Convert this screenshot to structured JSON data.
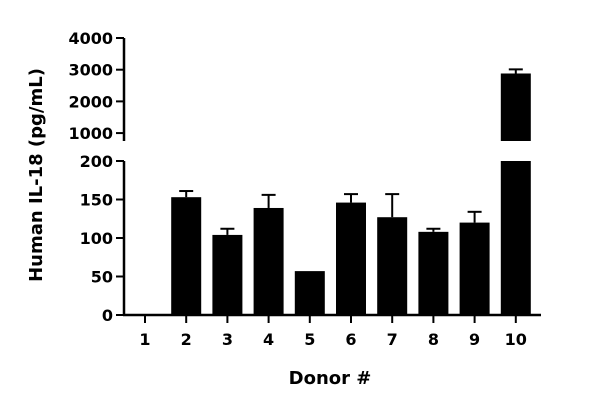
{
  "chart_data": {
    "type": "bar",
    "xlabel": "Donor #",
    "ylabel": "Human IL-18 (pg/mL)",
    "categories": [
      "1",
      "2",
      "3",
      "4",
      "5",
      "6",
      "7",
      "8",
      "9",
      "10"
    ],
    "values": [
      0,
      153,
      104,
      139,
      57,
      146,
      127,
      108,
      120,
      2880
    ],
    "error_upper": [
      0,
      8,
      8,
      17,
      0,
      11,
      30,
      4,
      14,
      130
    ],
    "y_axis_broken": true,
    "y_segments": [
      {
        "range": [
          0,
          200
        ],
        "ticks": [
          0,
          50,
          100,
          150,
          200
        ],
        "tick_labels": [
          "0",
          "50",
          "100",
          "150",
          "200"
        ]
      },
      {
        "range": [
          750,
          4000
        ],
        "ticks": [
          1000,
          2000,
          3000,
          4000
        ],
        "tick_labels": [
          "1000",
          "2000",
          "3000",
          "4000"
        ]
      }
    ],
    "grid": false,
    "legend": "none",
    "bar_color": "#000000"
  }
}
